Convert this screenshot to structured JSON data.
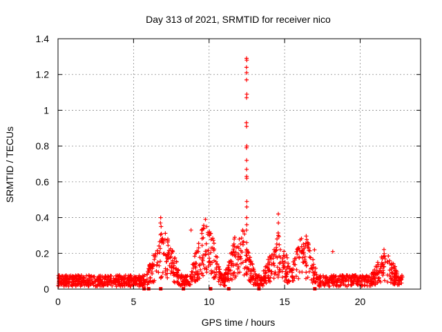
{
  "chart_data": {
    "type": "scatter",
    "title": "Day 313 of 2021, SRMTID for receiver nico",
    "xlabel": "GPS time / hours",
    "ylabel": "SRMTID / TECUs",
    "xlim": [
      0,
      24
    ],
    "ylim": [
      0,
      1.4
    ],
    "xticks": [
      0,
      5,
      10,
      15,
      20
    ],
    "xtick_labels": [
      "0",
      "5",
      "10",
      "15",
      "20"
    ],
    "yticks": [
      0,
      0.2,
      0.4,
      0.6,
      0.8,
      1.0,
      1.2,
      1.4
    ],
    "ytick_labels": [
      "0",
      "0.2",
      "0.4",
      "0.6",
      "0.8",
      "1",
      "1.2",
      "1.4"
    ],
    "grid": true,
    "marker": "+",
    "color": "#ff0000",
    "baseline_x_range": [
      0,
      22.8
    ],
    "baseline_level": 0.06,
    "dense_bursts": [
      {
        "x_range": [
          6.6,
          7.4
        ],
        "y_max": 0.27
      },
      {
        "x_range": [
          9.5,
          10.1
        ],
        "y_max": 0.33
      },
      {
        "x_range": [
          11.8,
          12.3
        ],
        "y_max": 0.31
      },
      {
        "x_range": [
          14.3,
          14.8
        ],
        "y_max": 0.25
      },
      {
        "x_range": [
          16.1,
          16.4
        ],
        "y_max": 0.27
      },
      {
        "x_range": [
          21.5,
          21.8
        ],
        "y_max": 0.18
      }
    ],
    "spikes": [
      {
        "x": 12.48,
        "y": [
          1.29,
          1.28,
          1.24,
          1.21,
          1.17,
          1.09,
          1.07,
          0.93,
          0.91,
          0.8,
          0.79,
          0.72,
          0.67,
          0.63,
          0.62,
          0.49,
          0.46,
          0.4,
          0.36,
          0.33
        ]
      },
      {
        "x": 6.8,
        "y": [
          0.4,
          0.37,
          0.35
        ]
      },
      {
        "x": 14.6,
        "y": [
          0.42,
          0.37
        ]
      },
      {
        "x": 8.8,
        "y": [
          0.33
        ]
      },
      {
        "x": 18.2,
        "y": [
          0.21
        ]
      },
      {
        "x": 17.0,
        "y": [
          0.22
        ]
      }
    ],
    "zero_markers_x": [
      5.7,
      6.0,
      6.8,
      8.3,
      10.1,
      11.3,
      13.3,
      17.0
    ]
  }
}
